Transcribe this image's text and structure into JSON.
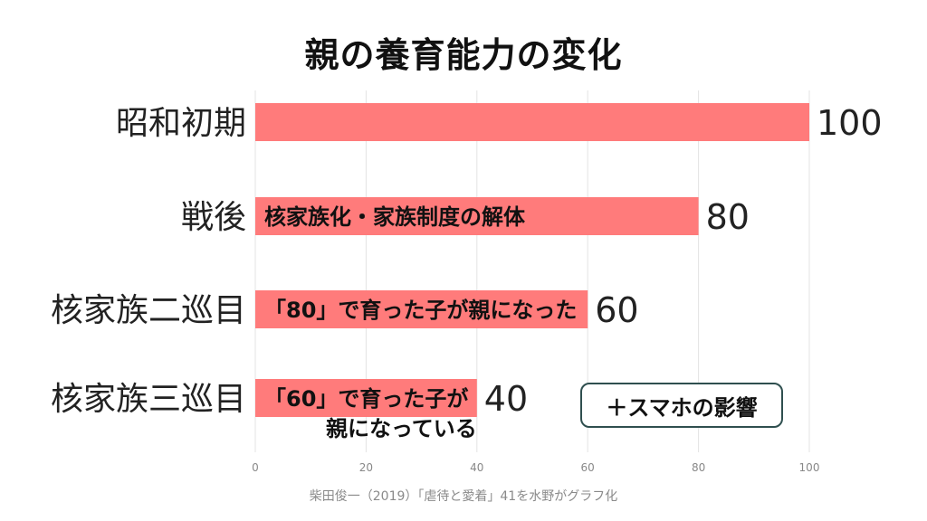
{
  "chart_data": {
    "type": "bar",
    "orientation": "horizontal",
    "title": "親の養育能力の変化",
    "categories": [
      "昭和初期",
      "戦後",
      "核家族二巡目",
      "核家族三巡目"
    ],
    "values": [
      100,
      80,
      60,
      40
    ],
    "data_labels": [
      "100",
      "80",
      "60",
      "40"
    ],
    "bar_annotations": [
      [],
      [
        "核家族化・家族制度の解体"
      ],
      [
        "「80」で育った子が親になった"
      ],
      [
        "「60」で育った子が",
        "親になっている"
      ]
    ],
    "xlim": [
      0,
      100
    ],
    "x_ticks": [
      0,
      20,
      40,
      60,
      80,
      100
    ],
    "x_tick_labels": [
      "0",
      "20",
      "40",
      "60",
      "80",
      "100"
    ],
    "grid": true,
    "bar_color": "#ff7b7b",
    "gridline_color": "#e3e3e3"
  },
  "callout": {
    "text": "＋スマホの影響",
    "border_color": "#2f4f4f"
  },
  "source": "柴田俊一（2019）「虐待と愛着」41を水野がグラフ化"
}
